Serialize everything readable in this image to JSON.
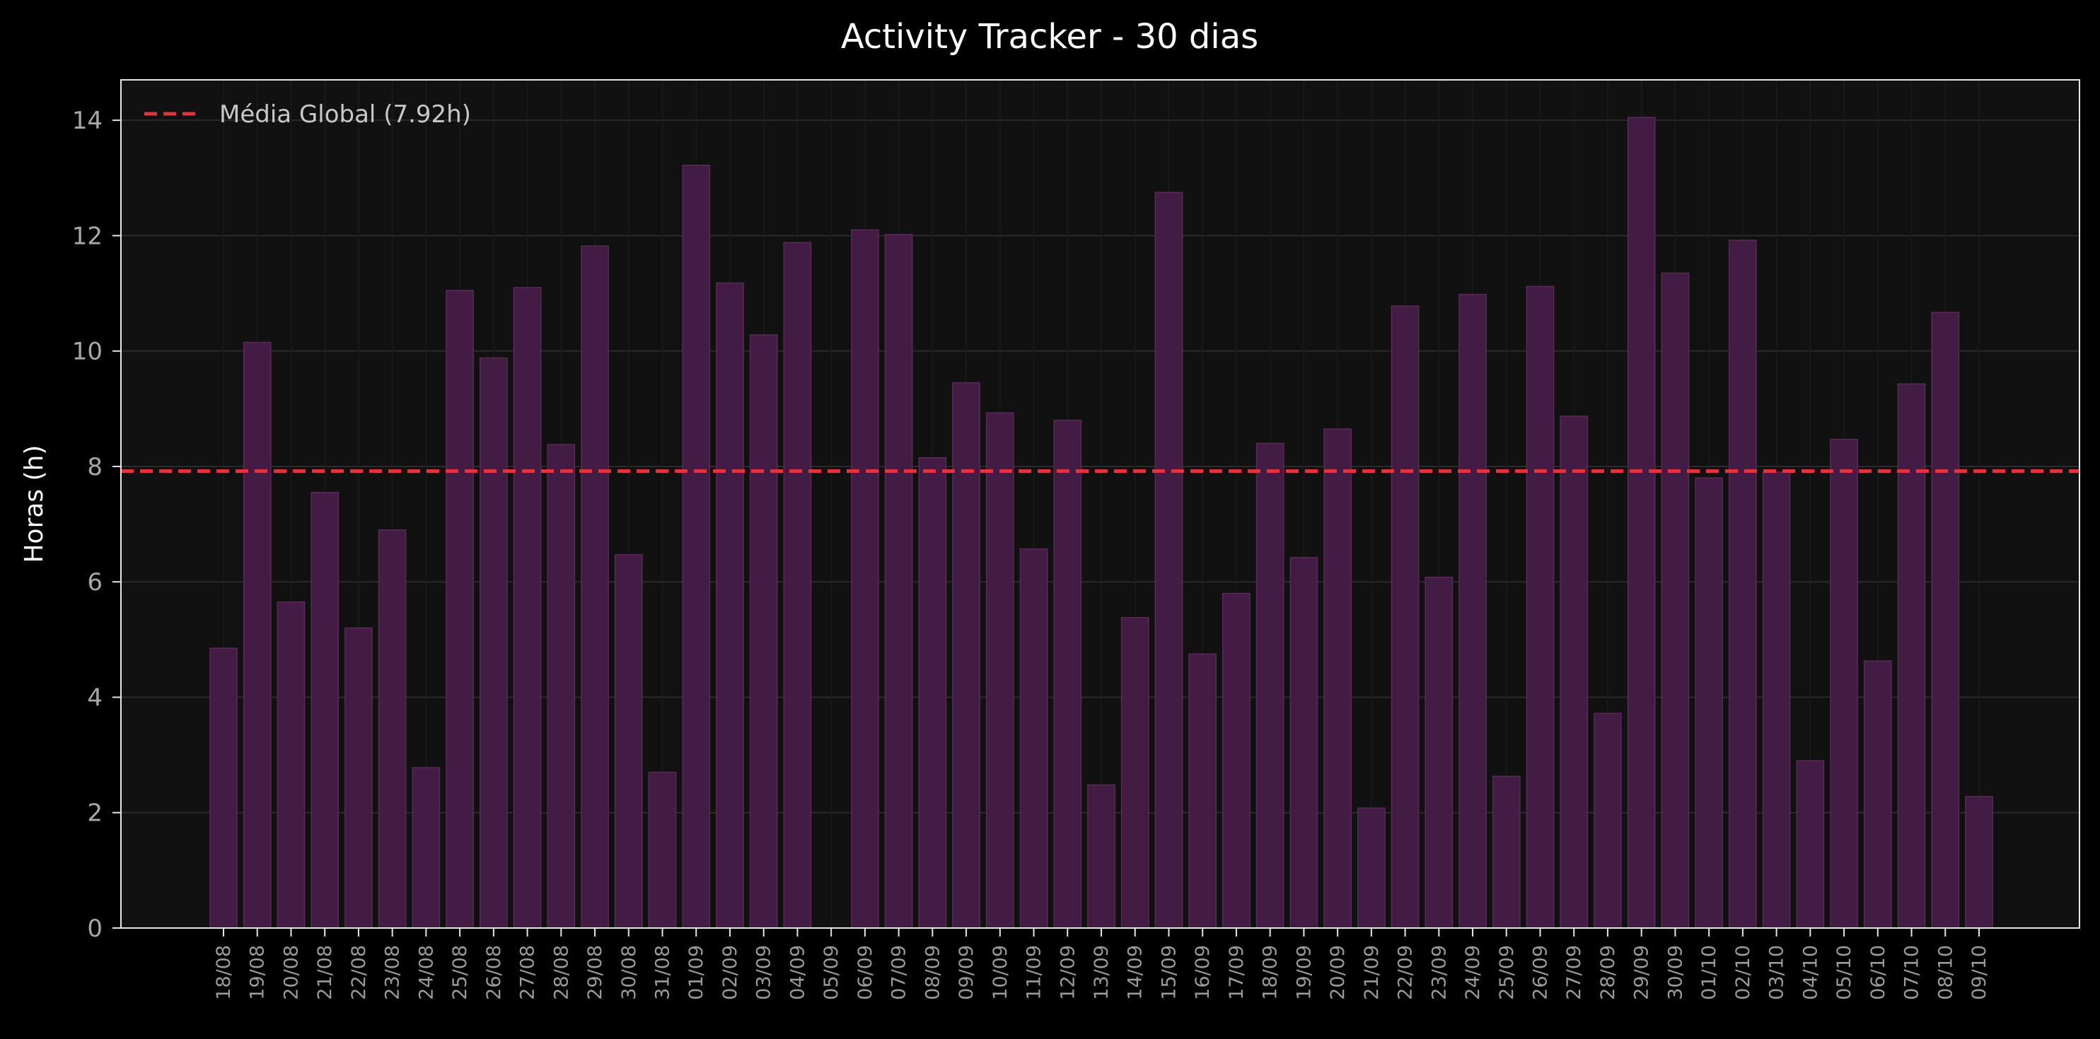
{
  "chart_data": {
    "type": "bar",
    "title": "Activity Tracker - 30 dias",
    "xlabel": "",
    "ylabel": "Horas (h)",
    "ylim": [
      0,
      14.7
    ],
    "yticks": [
      0,
      2,
      4,
      6,
      8,
      10,
      12,
      14
    ],
    "grid": true,
    "legend_position": "top-left",
    "colors": {
      "background": "#000000",
      "plot_background": "#111111",
      "bar": "#421c42",
      "bar_edge": "#5a2a58",
      "mean_line": "#e0353f",
      "grid": "#2a2a2a",
      "axis": "#e6e6e6"
    },
    "categories": [
      "18/08",
      "19/08",
      "20/08",
      "21/08",
      "22/08",
      "23/08",
      "24/08",
      "25/08",
      "26/08",
      "27/08",
      "28/08",
      "29/08",
      "30/08",
      "31/08",
      "01/09",
      "02/09",
      "03/09",
      "04/09",
      "05/09",
      "06/09",
      "07/09",
      "08/09",
      "09/09",
      "10/09",
      "11/09",
      "12/09",
      "13/09",
      "14/09",
      "15/09",
      "16/09",
      "17/09",
      "18/09",
      "19/09",
      "20/09",
      "21/09",
      "22/09",
      "23/09",
      "24/09",
      "25/09",
      "26/09",
      "27/09",
      "28/09",
      "29/09",
      "30/09",
      "01/10",
      "02/10",
      "03/10",
      "04/10",
      "05/10",
      "06/10",
      "07/10",
      "08/10",
      "09/10"
    ],
    "series": [
      {
        "values": [
          4.85,
          10.15,
          5.65,
          7.55,
          5.2,
          6.9,
          2.78,
          11.05,
          9.88,
          11.1,
          8.38,
          11.82,
          6.47,
          2.7,
          13.22,
          11.18,
          10.28,
          11.88,
          0,
          12.1,
          12.02,
          8.15,
          9.45,
          8.93,
          6.57,
          8.8,
          2.48,
          5.38,
          12.75,
          4.75,
          5.8,
          8.4,
          6.42,
          8.65,
          2.08,
          10.78,
          6.08,
          10.98,
          2.63,
          11.12,
          8.87,
          3.72,
          14.05,
          11.35,
          7.8,
          11.92,
          7.9,
          2.9,
          8.47,
          4.63,
          9.43,
          10.67,
          2.28
        ]
      }
    ],
    "mean_line": {
      "value": 7.92,
      "label": "Média Global (7.92h)"
    }
  }
}
